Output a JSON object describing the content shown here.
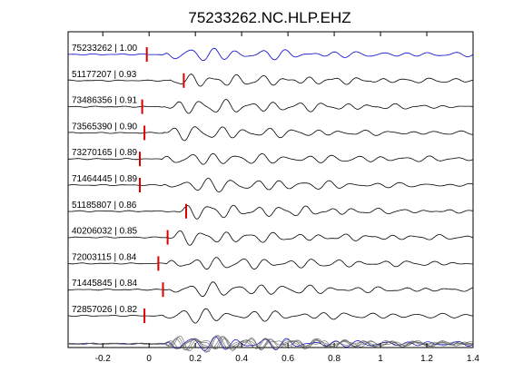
{
  "chart_data": {
    "type": "line",
    "title": "75233262.NC.HLP.EHZ",
    "xlabel": "",
    "ylabel": "",
    "xlim": [
      -0.35,
      1.4
    ],
    "xticks": [
      "-0.2",
      "0",
      "0.2",
      "0.4",
      "0.6",
      "0.8",
      "1",
      "1.2",
      "1.4"
    ],
    "xtick_values": [
      -0.2,
      0,
      0.2,
      0.4,
      0.6,
      0.8,
      1.0,
      1.2,
      1.4
    ],
    "grid": false,
    "legend": "none",
    "colors": {
      "reference_trace": "#0000cc",
      "trace": "#000000",
      "marker": "#dd0000",
      "stack_trace": "#555555"
    },
    "series": [
      {
        "label": "75233262 | 1.00",
        "pick_time": -0.01,
        "reference": true
      },
      {
        "label": "51177207 | 0.93",
        "pick_time": 0.15
      },
      {
        "label": "73486356 | 0.91",
        "pick_time": -0.03
      },
      {
        "label": "73565390 | 0.90",
        "pick_time": -0.02
      },
      {
        "label": "73270165 | 0.89",
        "pick_time": -0.04
      },
      {
        "label": "71464445 | 0.89",
        "pick_time": -0.04
      },
      {
        "label": "51185807 | 0.86",
        "pick_time": 0.16
      },
      {
        "label": "40206032 | 0.85",
        "pick_time": 0.08
      },
      {
        "label": "72003115 | 0.84",
        "pick_time": 0.04
      },
      {
        "label": "71445845 | 0.84",
        "pick_time": 0.06
      },
      {
        "label": "72857026 | 0.82",
        "pick_time": -0.02
      }
    ],
    "overlay": {
      "type": "stack",
      "description_visible": false
    }
  }
}
